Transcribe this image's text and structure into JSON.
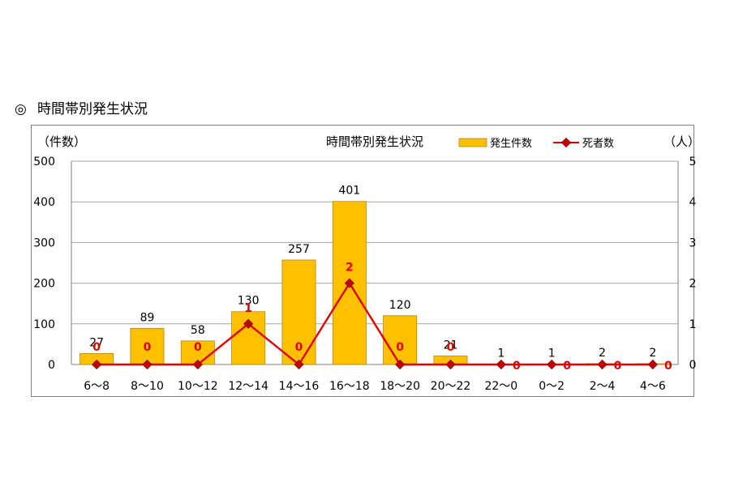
{
  "page": {
    "heading_mark": "◎",
    "heading": "時間帯別発生状況"
  },
  "chart_data": {
    "type": "bar",
    "title": "時間帯別発生状況",
    "ylabel": "（件数）",
    "y2label": "（人）",
    "categories": [
      "6～8",
      "8～10",
      "10～12",
      "12～14",
      "14～16",
      "16～18",
      "18～20",
      "20～22",
      "22～0",
      "0～2",
      "2～4",
      "4～6"
    ],
    "series": [
      {
        "name": "発生件数",
        "type": "bar",
        "axis": "left",
        "values": [
          27,
          89,
          58,
          130,
          257,
          401,
          120,
          21,
          1,
          1,
          2,
          2
        ]
      },
      {
        "name": "死者数",
        "type": "line",
        "axis": "right",
        "values": [
          0,
          0,
          0,
          1,
          0,
          2,
          0,
          0,
          0,
          0,
          0,
          0
        ]
      }
    ],
    "ylim": [
      0,
      500
    ],
    "y2lim": [
      0,
      5
    ],
    "yticks": [
      "0",
      "100",
      "200",
      "300",
      "400",
      "500"
    ],
    "y2ticks": [
      "0",
      "1",
      "2",
      "3",
      "4",
      "5"
    ],
    "grid": true,
    "legend": "top-right",
    "colors": {
      "bar": "#ffc000",
      "bar_border": "#b8860b",
      "line": "#e00000",
      "marker": "#c00000",
      "grid": "#a6a6a6"
    }
  }
}
